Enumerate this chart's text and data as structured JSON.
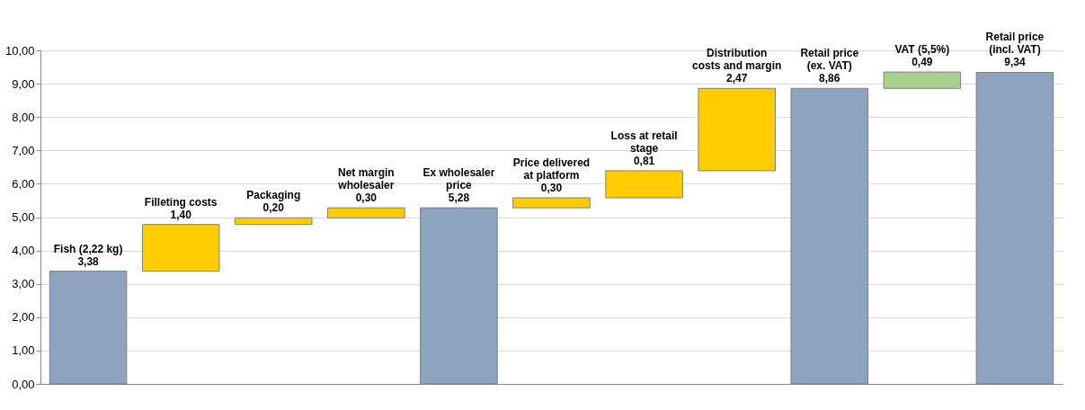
{
  "chart_data": {
    "type": "bar",
    "categories": [
      "Fish (2,22 kg)",
      "Filleting costs",
      "Packaging",
      "Net margin wholesaler",
      "Ex wholesaler price",
      "Price delivered at platform",
      "Loss at retail stage",
      "Distribution  costs and margin",
      "Retail price (ex. VAT)",
      "VAT (5,5%)",
      "Retail price (incl. VAT)"
    ],
    "values": [
      3.38,
      1.4,
      0.2,
      0.3,
      5.28,
      0.3,
      0.81,
      2.47,
      8.86,
      0.49,
      9.34
    ],
    "base": [
      0,
      3.38,
      4.78,
      4.98,
      0,
      5.28,
      5.58,
      6.39,
      0,
      8.86,
      0
    ],
    "colors": [
      "#8ea3bf",
      "#ffcc00",
      "#ffcc00",
      "#ffcc00",
      "#8ea3bf",
      "#ffcc00",
      "#ffcc00",
      "#ffcc00",
      "#8ea3bf",
      "#a9d18e",
      "#8ea3bf"
    ],
    "value_labels": [
      "3,38",
      "1,40",
      "0,20",
      "0,30",
      "5,28",
      "0,30",
      "0,81",
      "2,47",
      "8,86",
      "0,49",
      "9,34"
    ],
    "ylim": [
      0,
      10
    ],
    "yticks": [
      {
        "value": 0,
        "label": "0,00"
      },
      {
        "value": 1,
        "label": "1,00"
      },
      {
        "value": 2,
        "label": "2,00"
      },
      {
        "value": 3,
        "label": "3,00"
      },
      {
        "value": 4,
        "label": "4,00"
      },
      {
        "value": 5,
        "label": "5,00"
      },
      {
        "value": 6,
        "label": "6,00"
      },
      {
        "value": 7,
        "label": "7,00"
      },
      {
        "value": 8,
        "label": "8,00"
      },
      {
        "value": 9,
        "label": "9,00"
      },
      {
        "value": 10,
        "label": "10,00"
      }
    ],
    "grid": "y",
    "tick_labels": "y"
  }
}
